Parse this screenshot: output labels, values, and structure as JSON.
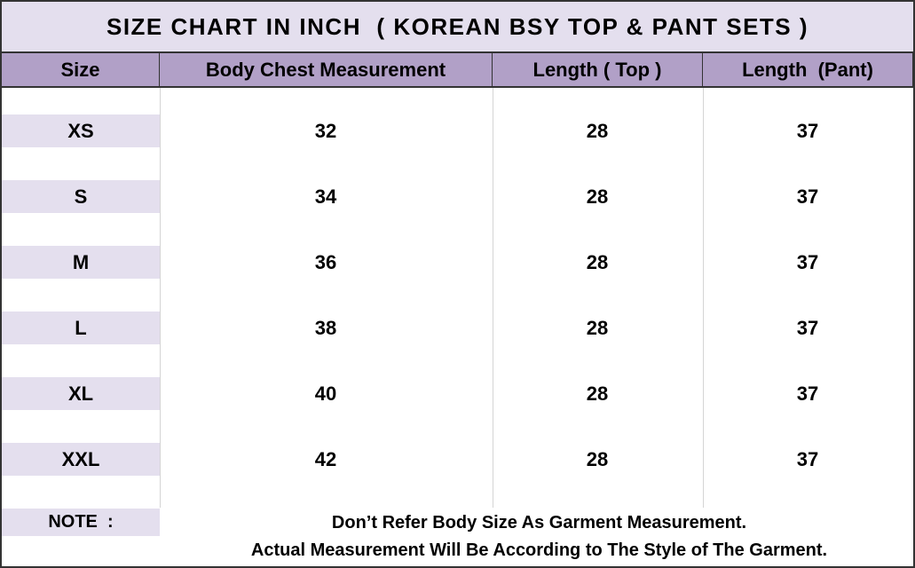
{
  "title": "SIZE CHART IN INCH  ( KOREAN BSY TOP & PANT SETS )",
  "table": {
    "columns": [
      "Size",
      "Body Chest Measurement",
      "Length ( Top )",
      "Length  (Pant)"
    ],
    "rows": [
      [
        "XS",
        32,
        28,
        37
      ],
      [
        "S",
        34,
        28,
        37
      ],
      [
        "M",
        36,
        28,
        37
      ],
      [
        "L",
        38,
        28,
        37
      ],
      [
        "XL",
        40,
        28,
        37
      ],
      [
        "XXL",
        42,
        28,
        37
      ]
    ]
  },
  "note": {
    "label": "NOTE  :",
    "lines": [
      "Don’t Refer Body Size As Garment Measurement.",
      "Actual Measurement Will Be According to The Style of The Garment."
    ]
  }
}
